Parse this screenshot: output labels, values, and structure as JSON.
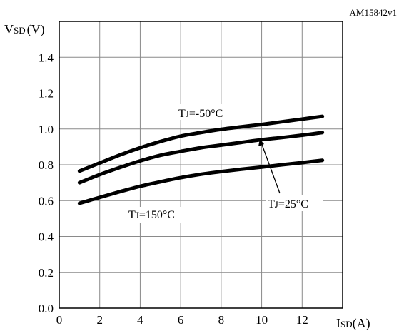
{
  "chart_data": {
    "type": "line",
    "figure_code": "AM15842v1",
    "ylabel": {
      "main": "V",
      "sub": "SD",
      "unit": "(V)"
    },
    "xlabel": {
      "main": "I",
      "sub": "SD",
      "unit": "(A)"
    },
    "xlim": [
      0,
      14
    ],
    "ylim": [
      0,
      1.6
    ],
    "xticks": [
      0,
      2,
      4,
      6,
      8,
      10,
      12
    ],
    "yticks": [
      0.0,
      0.2,
      0.4,
      0.6,
      0.8,
      1.0,
      1.2,
      1.4
    ],
    "ytick_labels": [
      "0.0",
      "0.2",
      "0.4",
      "0.6",
      "0.8",
      "1.0",
      "1.2",
      "1.4"
    ],
    "xtick_labels": [
      "0",
      "2",
      "4",
      "6",
      "8",
      "10",
      "12"
    ],
    "grid": true,
    "series": [
      {
        "name": "TJ=-50°C",
        "x": [
          1,
          2,
          3,
          4,
          5,
          6,
          7,
          8,
          9,
          10,
          11,
          12,
          13
        ],
        "y": [
          0.765,
          0.81,
          0.855,
          0.895,
          0.93,
          0.96,
          0.98,
          0.998,
          1.012,
          1.025,
          1.04,
          1.055,
          1.07
        ]
      },
      {
        "name": "TJ=25°C",
        "x": [
          1,
          2,
          3,
          4,
          5,
          6,
          7,
          8,
          9,
          10,
          11,
          12,
          13
        ],
        "y": [
          0.7,
          0.745,
          0.785,
          0.822,
          0.853,
          0.875,
          0.895,
          0.91,
          0.925,
          0.94,
          0.952,
          0.965,
          0.98
        ]
      },
      {
        "name": "TJ=150°C",
        "x": [
          1,
          2,
          3,
          4,
          5,
          6,
          7,
          8,
          9,
          10,
          11,
          12,
          13
        ],
        "y": [
          0.585,
          0.618,
          0.65,
          0.68,
          0.705,
          0.728,
          0.747,
          0.762,
          0.775,
          0.787,
          0.8,
          0.812,
          0.825
        ]
      }
    ],
    "annotations": [
      {
        "main": "T",
        "sub": "J",
        "rest": "=-50°C"
      },
      {
        "main": "T",
        "sub": "J",
        "rest": "=25°C"
      },
      {
        "main": "T",
        "sub": "J",
        "rest": "=150°C"
      }
    ],
    "line_color": "#000000"
  }
}
